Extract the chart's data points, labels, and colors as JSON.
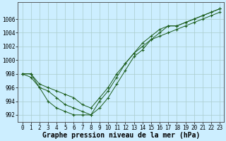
{
  "title": "Graphe pression niveau de la mer (hPa)",
  "bg_color": "#cceeff",
  "grid_color": "#aacccc",
  "line_color": "#1a5c1a",
  "marker": "+",
  "series": {
    "line1": [
      998.0,
      998.0,
      996.0,
      995.5,
      994.5,
      993.5,
      993.0,
      992.5,
      992.0,
      993.0,
      994.5,
      996.5,
      998.5,
      1000.5,
      1001.5,
      1003.0,
      1004.0,
      1005.0,
      1005.0,
      1005.5,
      1006.0,
      1006.5,
      1007.0,
      1007.5
    ],
    "line2": [
      998.0,
      997.5,
      996.0,
      994.0,
      993.0,
      992.5,
      992.0,
      992.0,
      992.0,
      994.0,
      995.5,
      997.5,
      999.5,
      1001.0,
      1002.5,
      1003.5,
      1004.5,
      1005.0,
      1005.0,
      1005.5,
      1006.0,
      1006.5,
      1007.0,
      1007.5
    ],
    "line3": [
      998.0,
      998.0,
      996.5,
      996.0,
      995.5,
      995.0,
      994.5,
      993.5,
      993.0,
      994.5,
      996.0,
      998.0,
      999.5,
      1001.0,
      1002.0,
      1003.0,
      1003.5,
      1004.0,
      1004.5,
      1005.0,
      1005.5,
      1006.0,
      1006.5,
      1007.0
    ]
  },
  "x_values": [
    0,
    1,
    2,
    3,
    4,
    5,
    6,
    7,
    8,
    9,
    10,
    11,
    12,
    13,
    14,
    15,
    16,
    17,
    18,
    19,
    20,
    21,
    22,
    23
  ],
  "ylim": [
    991.0,
    1008.5
  ],
  "yticks": [
    992,
    994,
    996,
    998,
    1000,
    1002,
    1004,
    1006
  ],
  "xticks": [
    0,
    1,
    2,
    3,
    4,
    5,
    6,
    7,
    8,
    9,
    10,
    11,
    12,
    13,
    14,
    15,
    16,
    17,
    18,
    19,
    20,
    21,
    22,
    23
  ],
  "title_fontsize": 7,
  "tick_fontsize": 5.5
}
